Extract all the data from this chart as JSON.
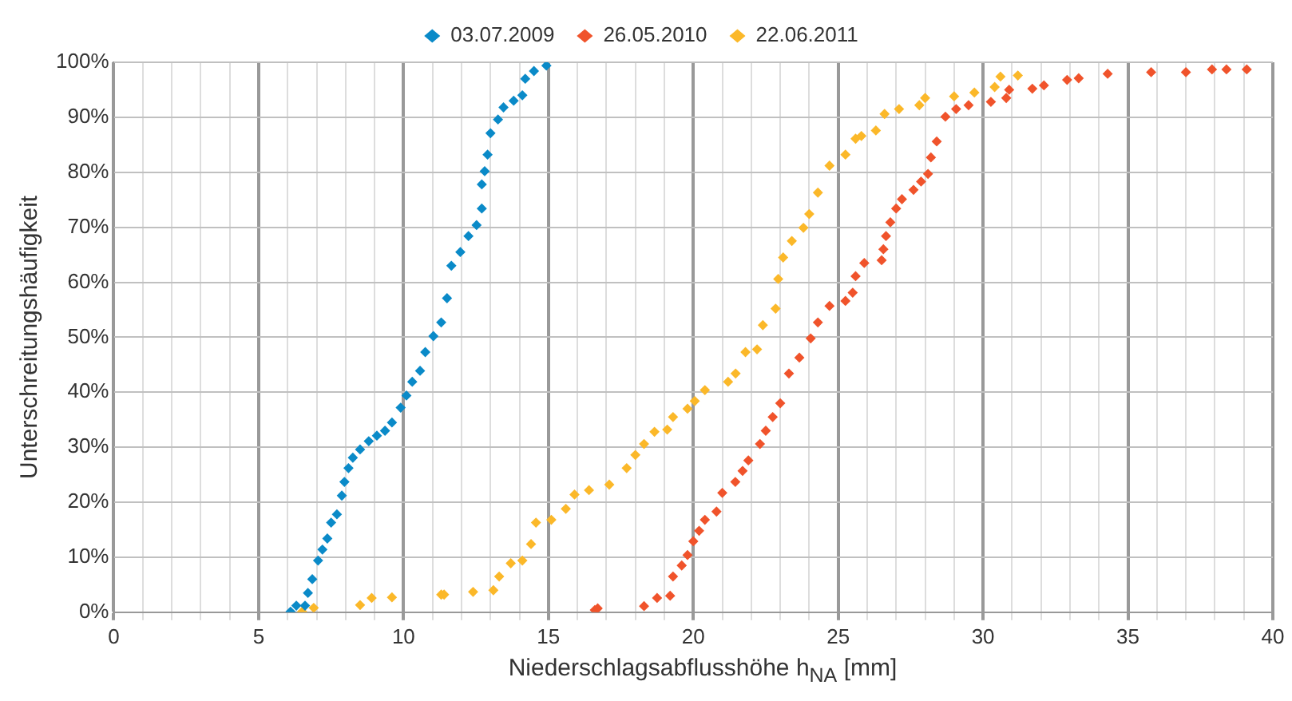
{
  "chart_data": {
    "type": "scatter",
    "xlabel": "Niederschlagsabflusshöhe h$_{NA}$ [mm]",
    "ylabel": "Unterschreitungshäufigkeit",
    "legend": "top",
    "grid": true,
    "marker": "diamond",
    "xlim": [
      0,
      40
    ],
    "ylim": [
      0,
      100
    ],
    "xticks": [
      0,
      {
        "value": 1,
        "label": null
      },
      {
        "value": 2,
        "label": null
      },
      {
        "value": 3,
        "label": null
      },
      {
        "value": 4,
        "label": null
      },
      5,
      {
        "value": 6,
        "label": null
      },
      {
        "value": 7,
        "label": null
      },
      {
        "value": 8,
        "label": null
      },
      {
        "value": 9,
        "label": null
      },
      10,
      {
        "value": 11,
        "label": null
      },
      {
        "value": 12,
        "label": null
      },
      {
        "value": 13,
        "label": null
      },
      {
        "value": 14,
        "label": null
      },
      15,
      {
        "value": 16,
        "label": null
      },
      {
        "value": 17,
        "label": null
      },
      {
        "value": 18,
        "label": null
      },
      {
        "value": 19,
        "label": null
      },
      20,
      {
        "value": 21,
        "label": null
      },
      {
        "value": 22,
        "label": null
      },
      {
        "value": 23,
        "label": null
      },
      {
        "value": 24,
        "label": null
      },
      25,
      {
        "value": 26,
        "label": null
      },
      {
        "value": 27,
        "label": null
      },
      {
        "value": 28,
        "label": null
      },
      {
        "value": 29,
        "label": null
      },
      30,
      {
        "value": 31,
        "label": null
      },
      {
        "value": 32,
        "label": null
      },
      {
        "value": 33,
        "label": null
      },
      {
        "value": 34,
        "label": null
      },
      35,
      {
        "value": 36,
        "label": null
      },
      {
        "value": 37,
        "label": null
      },
      {
        "value": 38,
        "label": null
      },
      {
        "value": 39,
        "label": null
      },
      40
    ],
    "yticks": [
      {
        "value": 0,
        "label": "0%"
      },
      {
        "value": 10,
        "label": "10%"
      },
      {
        "value": 20,
        "label": "20%"
      },
      {
        "value": 30,
        "label": "30%"
      },
      {
        "value": 40,
        "label": "40%"
      },
      {
        "value": 50,
        "label": "50%"
      },
      {
        "value": 60,
        "label": "60%"
      },
      {
        "value": 70,
        "label": "70%"
      },
      {
        "value": 80,
        "label": "80%"
      },
      {
        "value": 90,
        "label": "90%"
      },
      {
        "value": 100,
        "label": "100%"
      }
    ],
    "series": [
      {
        "name": "03.07.2009",
        "color": "#0a8ac8",
        "x": [
          6.1,
          6.3,
          6.6,
          6.7,
          6.85,
          7.05,
          7.2,
          7.37,
          7.5,
          7.7,
          7.87,
          7.96,
          8.1,
          8.25,
          8.5,
          8.8,
          9.08,
          9.36,
          9.6,
          9.9,
          10.1,
          10.3,
          10.57,
          10.75,
          11.03,
          11.3,
          11.5,
          11.65,
          11.96,
          12.24,
          12.52,
          12.7,
          12.7,
          12.8,
          12.9,
          13.0,
          13.26,
          13.45,
          13.8,
          14.1,
          14.2,
          14.5,
          14.93
        ],
        "values": [
          0.1,
          1.2,
          1.2,
          3.5,
          6,
          9.4,
          11.4,
          13.4,
          16.3,
          17.8,
          21.2,
          23.7,
          26.2,
          28.1,
          29.6,
          31.1,
          32.1,
          33,
          34.5,
          37.2,
          39.4,
          41.9,
          43.9,
          47.3,
          50.2,
          52.7,
          57.1,
          63,
          65.5,
          68.4,
          70.4,
          73.4,
          77.8,
          80.2,
          83.2,
          87.1,
          89.6,
          91.8,
          93,
          94,
          97,
          98.4,
          99.4
        ]
      },
      {
        "name": "26.05.2010",
        "color": "#f0532b",
        "x": [
          16.6,
          16.7,
          18.3,
          18.75,
          19.2,
          19.3,
          19.6,
          19.8,
          20.0,
          20.2,
          20.4,
          20.8,
          21.0,
          21.45,
          21.7,
          21.9,
          22.3,
          22.5,
          22.74,
          23.0,
          23.3,
          23.66,
          24.05,
          24.3,
          24.7,
          25.25,
          25.5,
          25.6,
          25.9,
          26.5,
          26.56,
          26.65,
          26.8,
          27.0,
          27.2,
          27.6,
          27.86,
          28.1,
          28.2,
          28.4,
          28.7,
          29.07,
          29.5,
          30.27,
          30.8,
          30.9,
          31.7,
          32.1,
          32.9,
          33.3,
          34.3,
          35.8,
          37.0,
          37.9,
          38.4,
          39.1
        ],
        "values": [
          0.4,
          0.7,
          1.1,
          2.6,
          3,
          6.5,
          8.5,
          10.4,
          12.9,
          14.8,
          16.8,
          18.3,
          21.7,
          23.7,
          25.7,
          27.6,
          30.6,
          33,
          35.5,
          38,
          43.4,
          46.3,
          49.8,
          52.7,
          55.7,
          56.6,
          58.1,
          61.1,
          63.5,
          64,
          66,
          68.4,
          70.9,
          73.4,
          75.1,
          76.8,
          78.3,
          79.7,
          82.7,
          85.6,
          90.1,
          91.5,
          92.2,
          92.8,
          93.5,
          95,
          95.2,
          95.8,
          96.8,
          97.1,
          97.9,
          98.2,
          98.2,
          98.7,
          98.7,
          98.7
        ]
      },
      {
        "name": "22.06.2011",
        "color": "#fbb829",
        "x": [
          6.5,
          6.9,
          8.5,
          8.9,
          9.6,
          11.3,
          11.4,
          12.4,
          13.1,
          13.3,
          13.7,
          14.1,
          14.4,
          14.57,
          15.1,
          15.6,
          15.9,
          16.4,
          17.1,
          17.7,
          18.0,
          18.3,
          18.66,
          19.1,
          19.3,
          19.8,
          20.05,
          20.4,
          21.2,
          21.46,
          21.8,
          22.2,
          22.4,
          22.84,
          22.93,
          23.1,
          23.4,
          23.8,
          24.0,
          24.3,
          24.7,
          25.25,
          25.6,
          25.8,
          26.3,
          26.6,
          27.1,
          27.8,
          28.0,
          29.0,
          29.7,
          30.4,
          30.6,
          31.2
        ],
        "values": [
          0.1,
          0.8,
          1.3,
          2.6,
          2.7,
          3.2,
          3.2,
          3.7,
          4,
          6.5,
          8.9,
          9.4,
          12.4,
          16.3,
          16.8,
          18.8,
          21.4,
          22.2,
          23.2,
          26.2,
          28.6,
          30.6,
          32.8,
          33.2,
          35.5,
          37,
          38.4,
          40.4,
          41.9,
          43.4,
          47.3,
          47.8,
          52.2,
          55.2,
          60.6,
          64.5,
          67.5,
          69.9,
          72.4,
          76.3,
          81.2,
          83.2,
          86.1,
          86.6,
          87.6,
          90.6,
          91.5,
          92.2,
          93.5,
          93.8,
          94.5,
          95.5,
          97.4,
          97.6
        ]
      }
    ]
  }
}
